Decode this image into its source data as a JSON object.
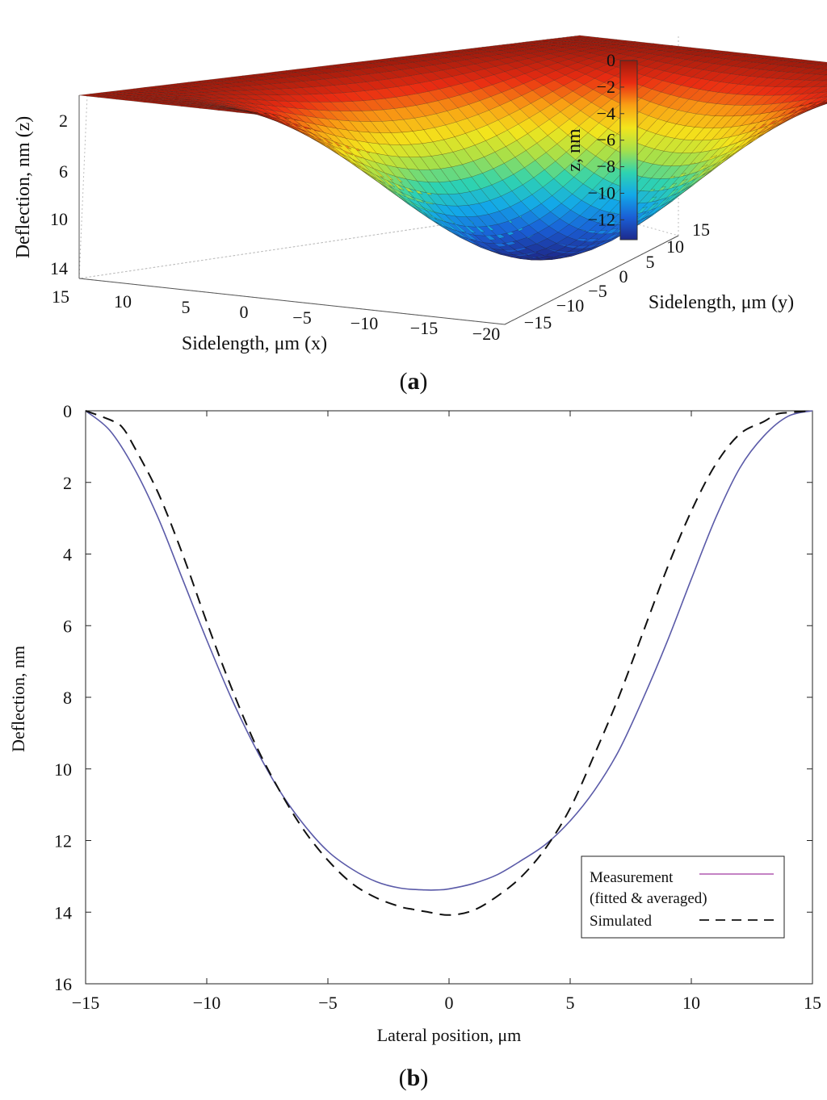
{
  "chart_data": [
    {
      "type": "surface3d",
      "panel_label": "(a)",
      "panel_letter": "a",
      "xlabel": "Sidelength, μm (x)",
      "ylabel": "Sidelength, μm (y)",
      "zlabel": "Deflection, nm (z)",
      "x_ticks": [
        "15",
        "10",
        "5",
        "0",
        "−5",
        "−10",
        "−15",
        "−20"
      ],
      "y_ticks": [
        "15",
        "10",
        "5",
        "0",
        "−5",
        "−10",
        "−15"
      ],
      "z_ticks": [
        "2",
        "6",
        "10",
        "14"
      ],
      "xlim": [
        -20,
        15
      ],
      "ylim": [
        -15,
        15
      ],
      "zlim": [
        0,
        14
      ],
      "surface_max_deflection": 13.5,
      "colorbar": {
        "label": "z, nm",
        "ticks": [
          "0",
          "−2",
          "−4",
          "−6",
          "−8",
          "−10",
          "−12"
        ],
        "range": [
          -13.5,
          0
        ],
        "colors": [
          "#1d2a8c",
          "#1a5fd6",
          "#13a8e8",
          "#2fd3b0",
          "#a6e04a",
          "#f3e51c",
          "#f9a014",
          "#ea2c12",
          "#9e1a0c"
        ]
      }
    },
    {
      "type": "line",
      "panel_label": "(b)",
      "panel_letter": "b",
      "xlabel": "Lateral position, μm",
      "ylabel": "Deflection, nm",
      "xlim": [
        -15,
        15
      ],
      "ylim": [
        0,
        16
      ],
      "y_inverted": true,
      "x_ticks": [
        "−15",
        "−10",
        "−5",
        "0",
        "5",
        "10",
        "15"
      ],
      "y_ticks": [
        "0",
        "2",
        "4",
        "6",
        "8",
        "10",
        "12",
        "14",
        "16"
      ],
      "legend": {
        "position": "lower-right",
        "entries": [
          "Measurement",
          "(fitted & averaged)",
          "Simulated"
        ]
      },
      "series": [
        {
          "name": "Measurement (fitted & averaged)",
          "color": "#5a5aa8",
          "style": "solid",
          "x": [
            -15,
            -14,
            -13,
            -12,
            -11,
            -10,
            -9,
            -8,
            -7,
            -6,
            -5,
            -4,
            -3,
            -2,
            -1,
            -0.5,
            0,
            1,
            2,
            3,
            4,
            5,
            6,
            7,
            8,
            9,
            10,
            11,
            12,
            13,
            14,
            15
          ],
          "y": [
            0,
            0.55,
            1.6,
            3.0,
            4.7,
            6.4,
            8.0,
            9.4,
            10.6,
            11.55,
            12.3,
            12.8,
            13.15,
            13.33,
            13.38,
            13.38,
            13.35,
            13.2,
            12.95,
            12.55,
            12.1,
            11.45,
            10.6,
            9.5,
            8.05,
            6.45,
            4.7,
            3.0,
            1.6,
            0.7,
            0.15,
            0
          ]
        },
        {
          "name": "Simulated",
          "color": "#111111",
          "style": "dashed",
          "x": [
            -15,
            -14,
            -13.5,
            -13,
            -12,
            -11,
            -10,
            -9,
            -8,
            -7,
            -6,
            -5,
            -4,
            -3,
            -2,
            -1.5,
            -1,
            0,
            1,
            2,
            3,
            4,
            5,
            6,
            7,
            8,
            9,
            10,
            11,
            12,
            13,
            13.5,
            14,
            15
          ],
          "y": [
            0,
            0.25,
            0.45,
            1.0,
            2.3,
            4.0,
            5.9,
            7.7,
            9.3,
            10.6,
            11.7,
            12.55,
            13.2,
            13.6,
            13.85,
            13.92,
            13.98,
            14.08,
            13.95,
            13.55,
            13.0,
            12.2,
            11.1,
            9.6,
            8.0,
            6.2,
            4.4,
            2.8,
            1.5,
            0.65,
            0.3,
            0.1,
            0.05,
            0
          ]
        }
      ]
    }
  ]
}
